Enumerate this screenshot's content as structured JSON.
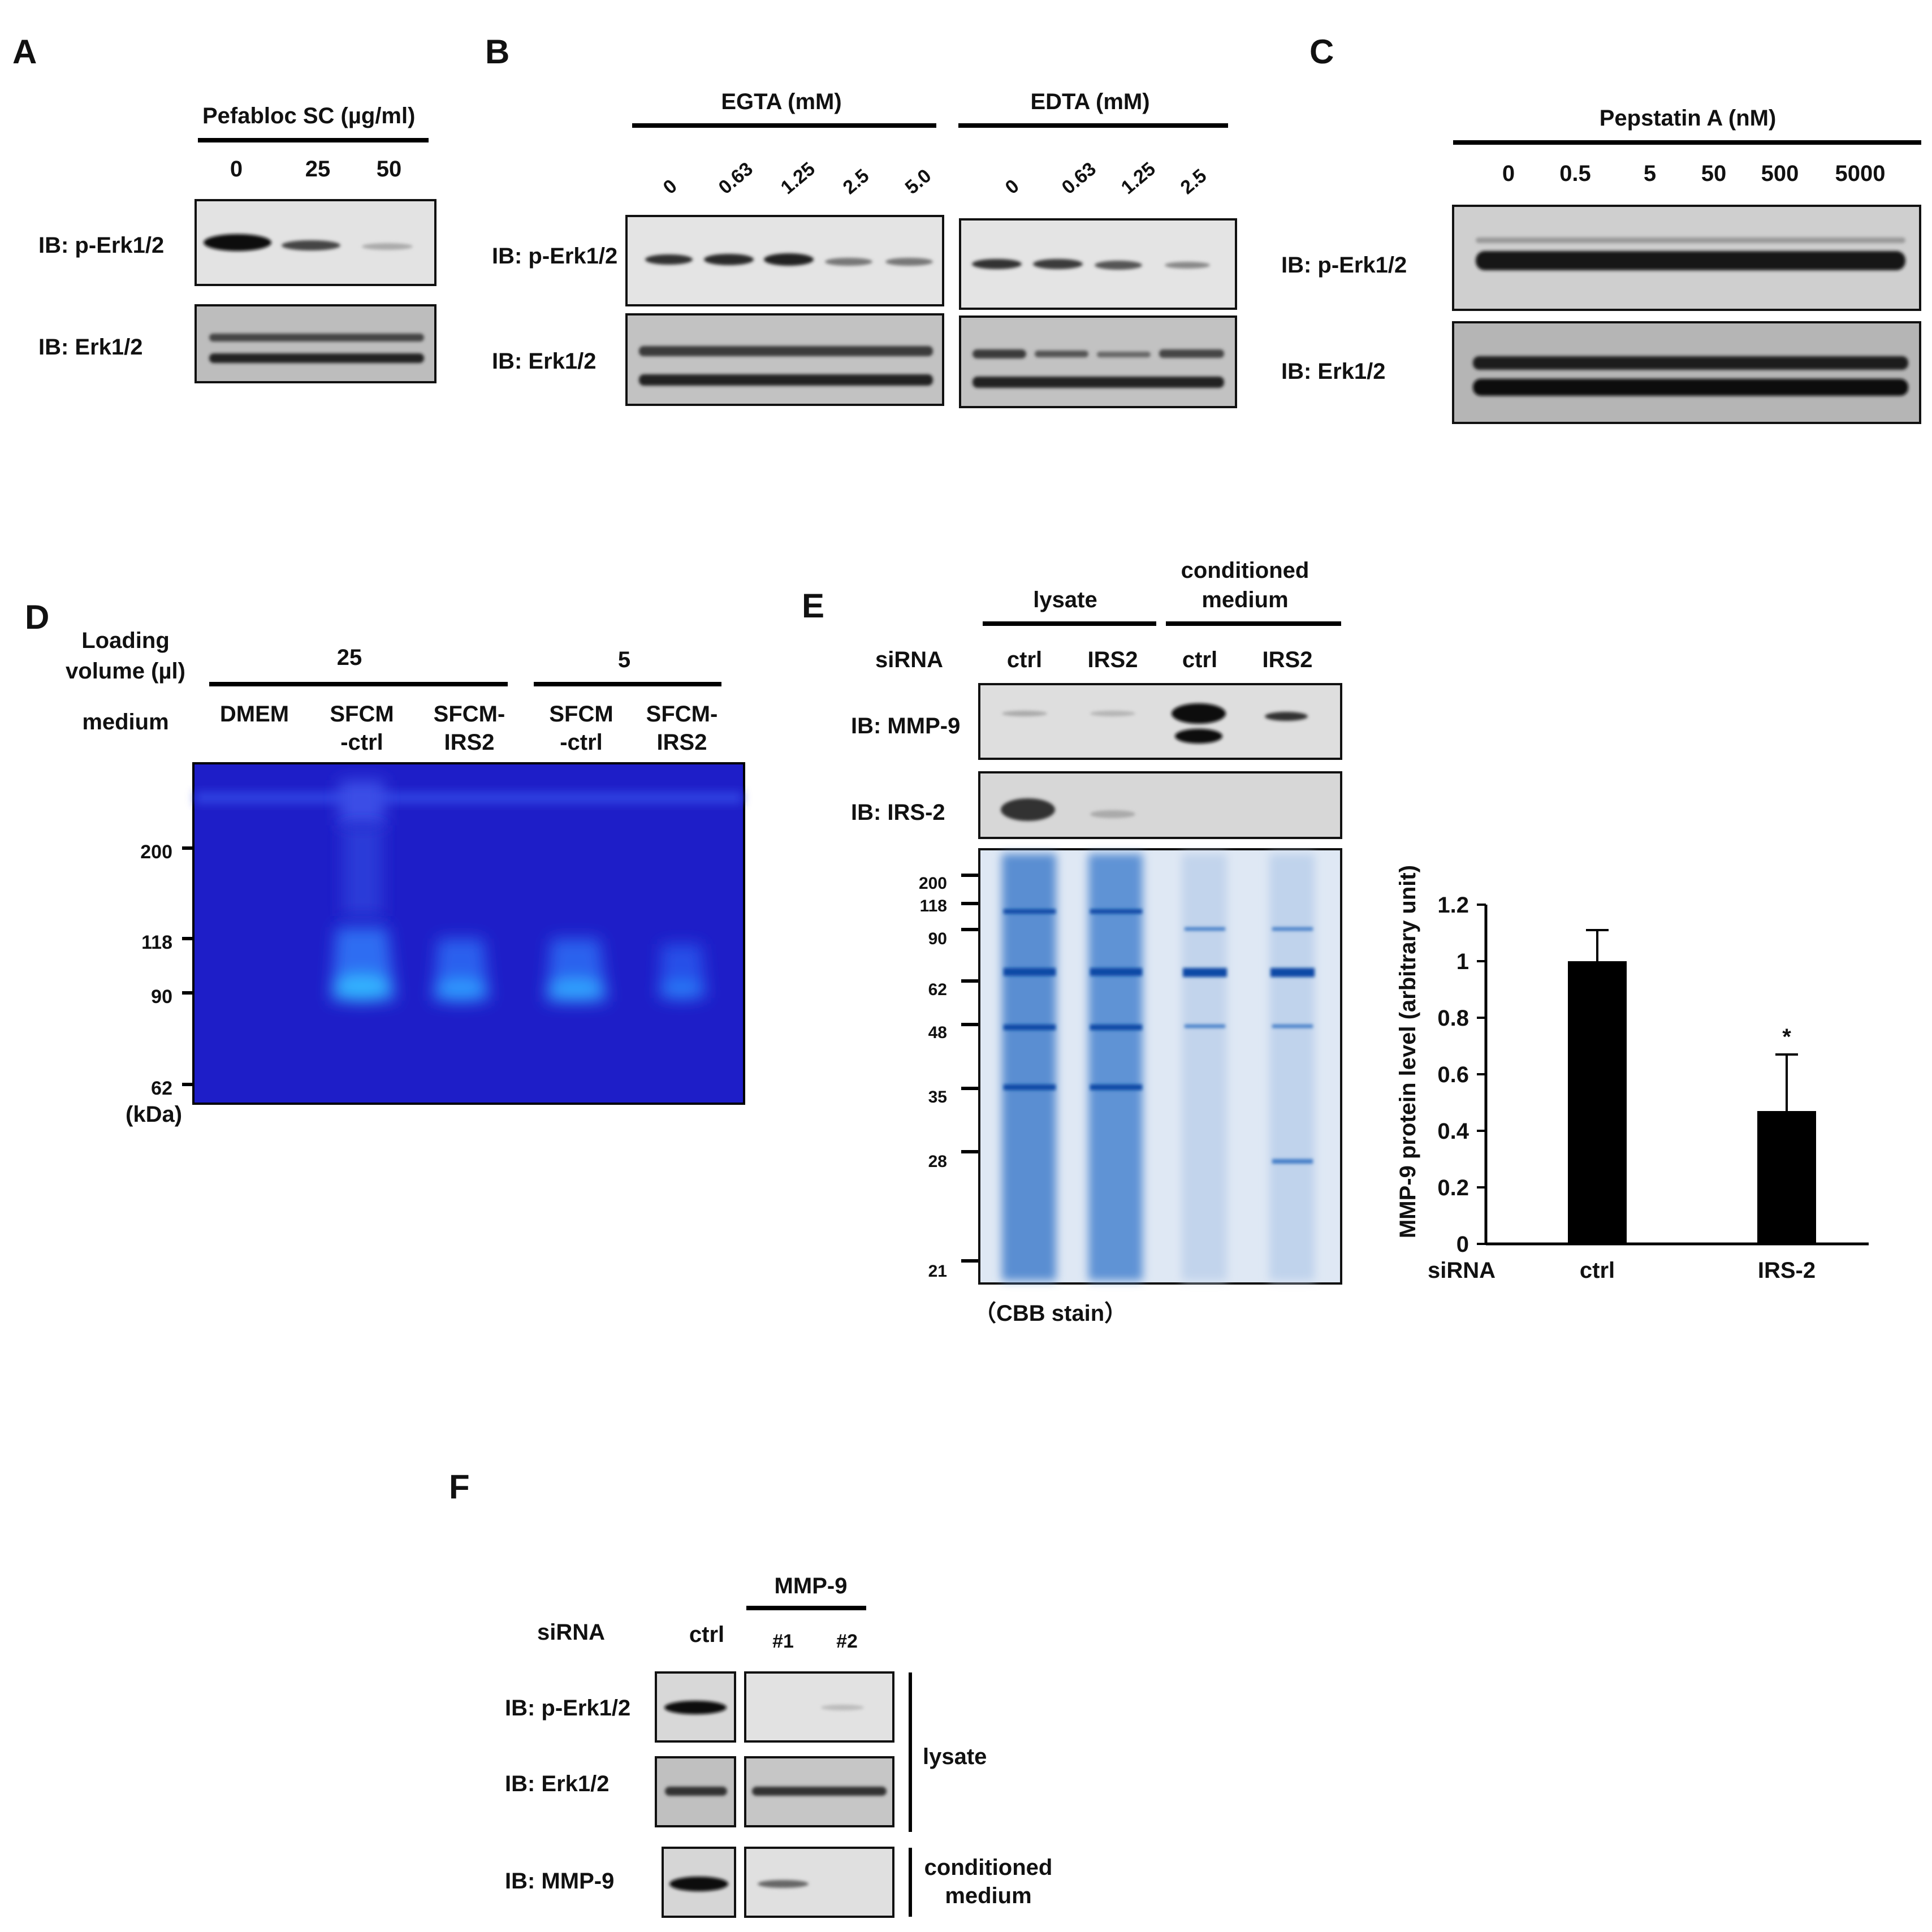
{
  "panel_letters": [
    "A",
    "B",
    "C",
    "D",
    "E",
    "F"
  ],
  "panelA": {
    "header": "Pefabloc SC (µg/ml)",
    "lanes": [
      "0",
      "25",
      "50"
    ],
    "blots": [
      "IB: p-Erk1/2",
      "IB: Erk1/2"
    ]
  },
  "panelB": {
    "egta_header": "EGTA (mM)",
    "egta_lanes": [
      "0",
      "0.63",
      "1.25",
      "2.5",
      "5.0"
    ],
    "edta_header": "EDTA (mM)",
    "edta_lanes": [
      "0",
      "0.63",
      "1.25",
      "2.5"
    ],
    "blots": [
      "IB: p-Erk1/2",
      "IB: Erk1/2"
    ]
  },
  "panelC": {
    "header": "Pepstatin A (nM)",
    "lanes": [
      "0",
      "0.5",
      "5",
      "50",
      "500",
      "5000"
    ],
    "blots": [
      "IB: p-Erk1/2",
      "IB: Erk1/2"
    ]
  },
  "panelD": {
    "loading_label_1": "Loading",
    "loading_label_2": "volume (µl)",
    "medium_label": "medium",
    "groups": [
      "25",
      "5"
    ],
    "lanes": [
      [
        "DMEM",
        ""
      ],
      [
        "SFCM",
        "-ctrl"
      ],
      [
        "SFCM-",
        "IRS2"
      ],
      [
        "SFCM",
        "-ctrl"
      ],
      [
        "SFCM-",
        "IRS2"
      ]
    ],
    "markers": [
      "200",
      "118",
      "90",
      "62"
    ],
    "unit": "(kDa)"
  },
  "panelE": {
    "group_lysate": "lysate",
    "group_cm_1": "conditioned",
    "group_cm_2": "medium",
    "sirna_label": "siRNA",
    "lanes": [
      "ctrl",
      "IRS2",
      "ctrl",
      "IRS2"
    ],
    "blots": [
      "IB: MMP-9",
      "IB: IRS-2"
    ],
    "cbb_markers": [
      "200",
      "118",
      "90",
      "62",
      "48",
      "35",
      "28",
      "21"
    ],
    "cbb_caption": "（CBB stain）"
  },
  "panelF": {
    "group_header": "MMP-9",
    "sirna_label": "siRNA",
    "lanes": [
      "ctrl",
      "#1",
      "#2"
    ],
    "blots": [
      "IB: p-Erk1/2",
      "IB: Erk1/2",
      "IB: MMP-9"
    ],
    "bracket_lysate": "lysate",
    "bracket_cm_1": "conditioned",
    "bracket_cm_2": "medium"
  },
  "chart_data": {
    "type": "bar",
    "categories": [
      "ctrl",
      "IRS-2"
    ],
    "values": [
      1.0,
      0.47
    ],
    "errors": [
      0.11,
      0.2
    ],
    "significance": [
      "",
      "*"
    ],
    "xlabel": "siRNA",
    "ylabel": "MMP-9 protein level (arbitrary unit)",
    "ylim": [
      0,
      1.2
    ],
    "yticks": [
      "0",
      "0.2",
      "0.4",
      "0.6",
      "0.8",
      "1",
      "1.2"
    ],
    "bar_color": "#000000",
    "grid": false
  }
}
